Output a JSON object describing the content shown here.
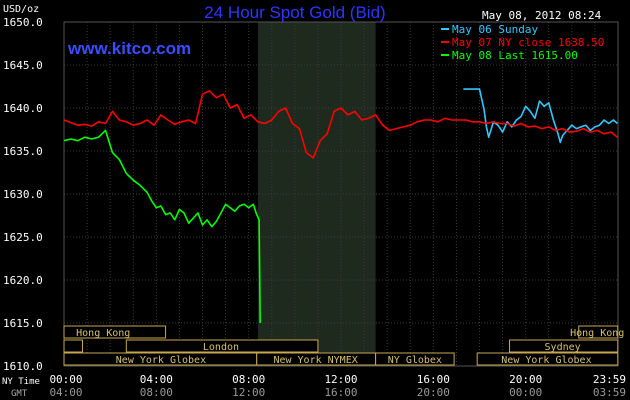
{
  "chart_data": {
    "type": "line",
    "title": "24 Hour Spot Gold (Bid)",
    "watermark": "www.kitco.com",
    "timestamp": "May 08, 2012 08:24",
    "ylabel": "USD/oz",
    "ylim": [
      1610,
      1650
    ],
    "yticks": [
      1610,
      1615,
      1620,
      1625,
      1630,
      1635,
      1640,
      1645,
      1650
    ],
    "ytick_labels": [
      "1610.0",
      "1615.0",
      "1620.0",
      "1625.0",
      "1630.0",
      "1635.0",
      "1640.0",
      "1645.0",
      "1650.0"
    ],
    "xlim": [
      0,
      24
    ],
    "xticks": [
      0,
      4,
      8,
      12,
      16,
      20,
      24
    ],
    "x_axis_label_ny": "NY Time",
    "x_axis_label_gmt": "GMT",
    "xtick_labels_ny": [
      "00:00",
      "04:00",
      "08:00",
      "12:00",
      "16:00",
      "20:00",
      "23:59"
    ],
    "xtick_labels_gmt": [
      "04:00",
      "08:00",
      "12:00",
      "16:00",
      "20:00",
      "00:00",
      "03:59"
    ],
    "shaded_region": [
      8.4,
      13.5
    ],
    "legend_position": "top-right",
    "series": [
      {
        "name": "May 06 Sunday",
        "color": "#30c8ff",
        "x": [
          17.3,
          18.0,
          18.1,
          18.2,
          18.3,
          18.4,
          18.6,
          18.8,
          19.0,
          19.2,
          19.4,
          19.6,
          19.8,
          20.0,
          20.2,
          20.4,
          20.6,
          20.8,
          21.0,
          21.2,
          21.4,
          21.5,
          21.6,
          21.8,
          22.0,
          22.2,
          22.4,
          22.6,
          22.8,
          23.0,
          23.2,
          23.4,
          23.6,
          23.8,
          23.98
        ],
        "y": [
          1642.2,
          1642.2,
          1641.0,
          1639.8,
          1637.8,
          1636.6,
          1638.4,
          1638.0,
          1637.2,
          1638.4,
          1637.8,
          1638.6,
          1639.0,
          1640.2,
          1639.6,
          1638.8,
          1640.8,
          1640.2,
          1640.6,
          1638.6,
          1637.0,
          1636.0,
          1636.8,
          1637.4,
          1638.0,
          1637.6,
          1637.8,
          1638.0,
          1637.4,
          1637.8,
          1638.0,
          1638.6,
          1638.2,
          1638.6,
          1638.2
        ]
      },
      {
        "name": "May 07 NY close 1638.50",
        "color": "#ff0000",
        "x": [
          0.0,
          0.3,
          0.6,
          0.9,
          1.2,
          1.5,
          1.8,
          2.1,
          2.4,
          2.7,
          3.0,
          3.3,
          3.6,
          3.9,
          4.2,
          4.5,
          4.8,
          5.1,
          5.4,
          5.7,
          6.0,
          6.3,
          6.6,
          6.9,
          7.2,
          7.5,
          7.8,
          8.1,
          8.4,
          8.7,
          9.0,
          9.3,
          9.6,
          9.9,
          10.2,
          10.5,
          10.8,
          11.1,
          11.4,
          11.7,
          12.0,
          12.3,
          12.6,
          12.9,
          13.2,
          13.5,
          13.8,
          14.1,
          14.4,
          14.7,
          15.0,
          15.3,
          15.6,
          15.9,
          16.2,
          16.5,
          16.8,
          17.1,
          17.4,
          17.7,
          18.0,
          18.3,
          18.6,
          18.9,
          19.2,
          19.5,
          19.8,
          20.1,
          20.4,
          20.7,
          21.0,
          21.3,
          21.6,
          21.9,
          22.2,
          22.5,
          22.8,
          23.1,
          23.4,
          23.7,
          23.98
        ],
        "y": [
          1638.6,
          1638.3,
          1638.0,
          1638.1,
          1637.9,
          1638.4,
          1638.2,
          1639.6,
          1638.6,
          1638.4,
          1638.0,
          1638.2,
          1638.6,
          1638.0,
          1639.2,
          1638.6,
          1638.1,
          1638.4,
          1638.6,
          1638.2,
          1641.6,
          1642.0,
          1641.2,
          1641.6,
          1640.0,
          1640.4,
          1638.8,
          1639.2,
          1638.4,
          1638.2,
          1638.6,
          1639.6,
          1640.0,
          1638.2,
          1637.6,
          1634.8,
          1634.2,
          1636.2,
          1637.0,
          1639.6,
          1640.0,
          1639.2,
          1639.6,
          1638.6,
          1638.8,
          1639.2,
          1638.0,
          1637.4,
          1637.6,
          1637.8,
          1638.0,
          1638.4,
          1638.6,
          1638.6,
          1638.4,
          1638.8,
          1638.6,
          1638.6,
          1638.6,
          1638.4,
          1638.4,
          1638.2,
          1638.4,
          1638.2,
          1638.2,
          1637.9,
          1638.2,
          1637.8,
          1637.9,
          1637.6,
          1637.8,
          1637.4,
          1637.6,
          1637.2,
          1637.3,
          1637.6,
          1637.2,
          1637.4,
          1637.0,
          1637.2,
          1636.6
        ]
      },
      {
        "name": "May 08 Last 1615.00",
        "color": "#00ff00",
        "x": [
          0.0,
          0.3,
          0.6,
          0.9,
          1.2,
          1.5,
          1.8,
          2.1,
          2.4,
          2.7,
          3.0,
          3.3,
          3.6,
          3.8,
          4.0,
          4.2,
          4.4,
          4.6,
          4.8,
          5.0,
          5.2,
          5.4,
          5.6,
          5.8,
          6.0,
          6.2,
          6.4,
          6.6,
          6.8,
          7.0,
          7.2,
          7.4,
          7.6,
          7.8,
          8.0,
          8.2,
          8.35,
          8.45,
          8.5
        ],
        "y": [
          1636.2,
          1636.4,
          1636.2,
          1636.6,
          1636.4,
          1636.6,
          1637.4,
          1634.8,
          1634.0,
          1632.4,
          1631.6,
          1631.0,
          1630.2,
          1629.2,
          1628.4,
          1628.6,
          1627.6,
          1627.8,
          1627.0,
          1628.2,
          1627.8,
          1626.6,
          1627.2,
          1627.8,
          1626.4,
          1627.0,
          1626.2,
          1626.8,
          1627.8,
          1628.8,
          1628.4,
          1628.0,
          1628.6,
          1628.8,
          1628.4,
          1628.8,
          1627.6,
          1627.0,
          1615.0
        ]
      }
    ],
    "sessions": [
      {
        "row": 0,
        "label": "Hong Kong",
        "start": 0.0,
        "end": 4.4,
        "label_at": 1.7
      },
      {
        "row": 0,
        "label": "Hong Kong",
        "start": 22.3,
        "end": 23.99,
        "label_at": 23.1
      },
      {
        "row": 1,
        "label": "",
        "start": 0.0,
        "end": 0.8,
        "label_at": 0.4
      },
      {
        "row": 1,
        "label": "London",
        "start": 2.7,
        "end": 11.0,
        "label_at": 6.8
      },
      {
        "row": 1,
        "label": "Sydney",
        "start": 19.3,
        "end": 23.99,
        "label_at": 21.6
      },
      {
        "row": 2,
        "label": "New York Globex",
        "start": 0.0,
        "end": 8.35,
        "label_at": 4.2
      },
      {
        "row": 2,
        "label": "New York NYMEX",
        "start": 8.35,
        "end": 13.5,
        "label_at": 10.9
      },
      {
        "row": 2,
        "label": "NY Globex",
        "start": 13.5,
        "end": 16.9,
        "label_at": 15.2
      },
      {
        "row": 2,
        "label": "New York Globex",
        "start": 17.9,
        "end": 23.99,
        "label_at": 20.9
      }
    ]
  }
}
